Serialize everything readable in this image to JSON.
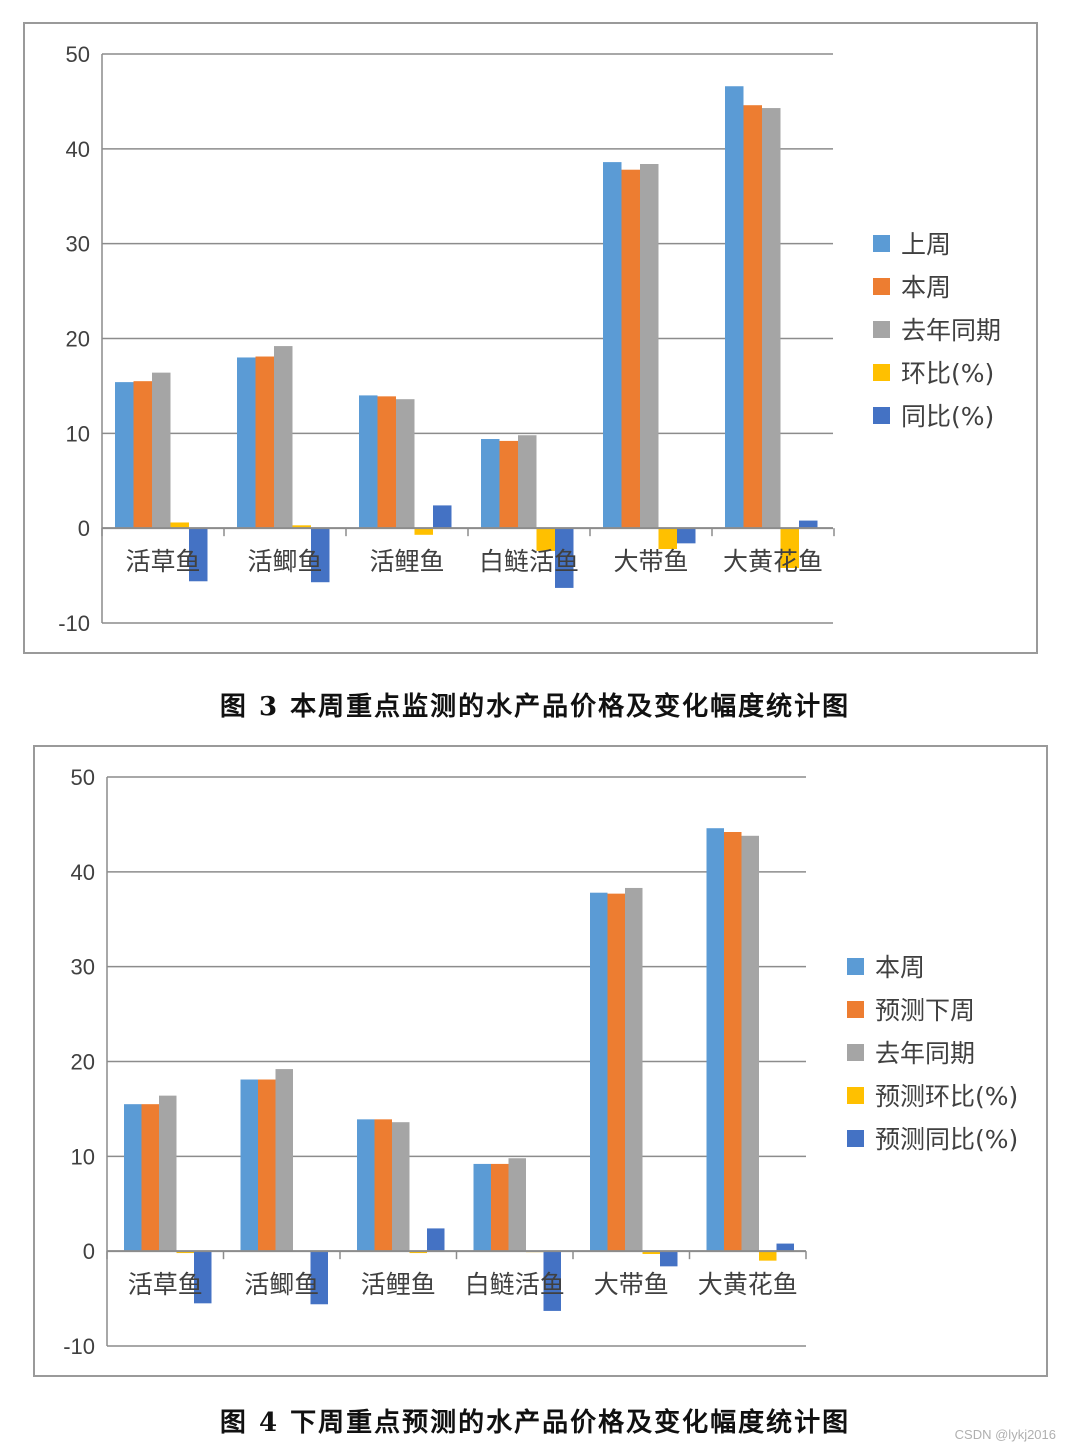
{
  "charts": [
    {
      "caption": "图 3 本周重点监测的水产品价格及变化幅度统计图",
      "chart_data": {
        "type": "bar",
        "title": "",
        "xlabel": "",
        "ylabel": "",
        "ylim": [
          -10,
          50
        ],
        "yticks": [
          -10,
          0,
          10,
          20,
          30,
          40,
          50
        ],
        "grid": true,
        "legend_position": "right",
        "categories": [
          "活草鱼",
          "活鲫鱼",
          "活鲤鱼",
          "白鲢活鱼",
          "大带鱼",
          "大黄花鱼"
        ],
        "series": [
          {
            "name": "上周",
            "color": "#5B9BD5",
            "values": [
              15.4,
              18.0,
              14.0,
              9.4,
              38.6,
              46.6
            ]
          },
          {
            "name": "本周",
            "color": "#ED7D31",
            "values": [
              15.5,
              18.1,
              13.9,
              9.2,
              37.8,
              44.6
            ]
          },
          {
            "name": "去年同期",
            "color": "#A5A5A5",
            "values": [
              16.4,
              19.2,
              13.6,
              9.8,
              38.4,
              44.3
            ]
          },
          {
            "name": "环比(%)",
            "color": "#FFC000",
            "values": [
              0.6,
              0.3,
              -0.7,
              -2.4,
              -2.2,
              -4.2
            ]
          },
          {
            "name": "同比(%)",
            "color": "#4472C4",
            "values": [
              -5.6,
              -5.7,
              2.4,
              -6.3,
              -1.6,
              0.8
            ]
          }
        ]
      }
    },
    {
      "caption": "图 4 下周重点预测的水产品价格及变化幅度统计图",
      "chart_data": {
        "type": "bar",
        "title": "",
        "xlabel": "",
        "ylabel": "",
        "ylim": [
          -10,
          50
        ],
        "yticks": [
          -10,
          0,
          10,
          20,
          30,
          40,
          50
        ],
        "grid": true,
        "legend_position": "right",
        "categories": [
          "活草鱼",
          "活鲫鱼",
          "活鲤鱼",
          "白鲢活鱼",
          "大带鱼",
          "大黄花鱼"
        ],
        "series": [
          {
            "name": "本周",
            "color": "#5B9BD5",
            "values": [
              15.5,
              18.1,
              13.9,
              9.2,
              37.8,
              44.6
            ]
          },
          {
            "name": "预测下周",
            "color": "#ED7D31",
            "values": [
              15.5,
              18.1,
              13.9,
              9.2,
              37.7,
              44.2
            ]
          },
          {
            "name": "去年同期",
            "color": "#A5A5A5",
            "values": [
              16.4,
              19.2,
              13.6,
              9.8,
              38.3,
              43.8
            ]
          },
          {
            "name": "预测环比(%)",
            "color": "#FFC000",
            "values": [
              -0.2,
              0,
              -0.2,
              -0.1,
              -0.3,
              -1.0
            ]
          },
          {
            "name": "预测同比(%)",
            "color": "#4472C4",
            "values": [
              -5.5,
              -5.6,
              2.4,
              -6.3,
              -1.6,
              0.8
            ]
          }
        ]
      }
    }
  ],
  "watermark": "CSDN @lykj2016"
}
